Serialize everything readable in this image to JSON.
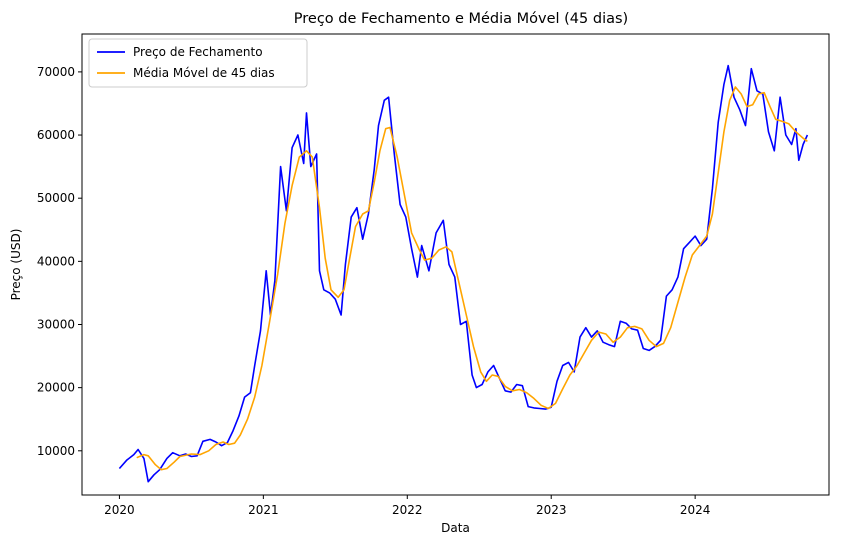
{
  "chart_data": {
    "type": "line",
    "title": "Preço de Fechamento e Média Móvel (45 dias)",
    "xlabel": "Data",
    "ylabel": "Preço (USD)",
    "xlim": [
      2019.74,
      2024.93
    ],
    "ylim": [
      3000,
      76000
    ],
    "x_ticks": [
      {
        "value": 2020,
        "label": "2020"
      },
      {
        "value": 2021,
        "label": "2021"
      },
      {
        "value": 2022,
        "label": "2022"
      },
      {
        "value": 2023,
        "label": "2023"
      },
      {
        "value": 2024,
        "label": "2024"
      }
    ],
    "y_ticks": [
      {
        "value": 10000,
        "label": "10000"
      },
      {
        "value": 20000,
        "label": "20000"
      },
      {
        "value": 30000,
        "label": "30000"
      },
      {
        "value": 40000,
        "label": "40000"
      },
      {
        "value": 50000,
        "label": "50000"
      },
      {
        "value": 60000,
        "label": "60000"
      },
      {
        "value": 70000,
        "label": "70000"
      }
    ],
    "grid": false,
    "legend_position": "top-left",
    "series": [
      {
        "name": "Preço de Fechamento",
        "color": "#0000ff",
        "points": [
          [
            2020.0,
            7200
          ],
          [
            2020.05,
            8500
          ],
          [
            2020.1,
            9400
          ],
          [
            2020.13,
            10200
          ],
          [
            2020.17,
            8800
          ],
          [
            2020.2,
            5100
          ],
          [
            2020.24,
            6200
          ],
          [
            2020.28,
            7000
          ],
          [
            2020.33,
            8800
          ],
          [
            2020.37,
            9700
          ],
          [
            2020.42,
            9200
          ],
          [
            2020.46,
            9500
          ],
          [
            2020.5,
            9100
          ],
          [
            2020.54,
            9200
          ],
          [
            2020.58,
            11500
          ],
          [
            2020.63,
            11800
          ],
          [
            2020.67,
            11400
          ],
          [
            2020.71,
            10800
          ],
          [
            2020.75,
            11300
          ],
          [
            2020.79,
            13200
          ],
          [
            2020.83,
            15500
          ],
          [
            2020.87,
            18500
          ],
          [
            2020.91,
            19200
          ],
          [
            2020.94,
            23500
          ],
          [
            2020.98,
            29000
          ],
          [
            2021.02,
            38500
          ],
          [
            2021.05,
            31500
          ],
          [
            2021.08,
            37000
          ],
          [
            2021.12,
            55000
          ],
          [
            2021.16,
            48000
          ],
          [
            2021.2,
            58000
          ],
          [
            2021.24,
            60000
          ],
          [
            2021.28,
            55500
          ],
          [
            2021.3,
            63500
          ],
          [
            2021.33,
            55000
          ],
          [
            2021.37,
            57000
          ],
          [
            2021.39,
            38500
          ],
          [
            2021.42,
            35500
          ],
          [
            2021.46,
            35000
          ],
          [
            2021.5,
            34000
          ],
          [
            2021.54,
            31500
          ],
          [
            2021.57,
            39500
          ],
          [
            2021.61,
            47000
          ],
          [
            2021.65,
            48500
          ],
          [
            2021.69,
            43500
          ],
          [
            2021.73,
            47500
          ],
          [
            2021.77,
            54500
          ],
          [
            2021.8,
            61500
          ],
          [
            2021.84,
            65500
          ],
          [
            2021.87,
            66000
          ],
          [
            2021.91,
            57000
          ],
          [
            2021.95,
            49000
          ],
          [
            2021.99,
            47000
          ],
          [
            2022.03,
            42000
          ],
          [
            2022.07,
            37500
          ],
          [
            2022.1,
            42500
          ],
          [
            2022.15,
            38500
          ],
          [
            2022.2,
            44500
          ],
          [
            2022.25,
            46500
          ],
          [
            2022.29,
            39500
          ],
          [
            2022.33,
            37500
          ],
          [
            2022.37,
            30000
          ],
          [
            2022.41,
            30500
          ],
          [
            2022.45,
            22000
          ],
          [
            2022.48,
            20000
          ],
          [
            2022.52,
            20500
          ],
          [
            2022.56,
            22500
          ],
          [
            2022.6,
            23500
          ],
          [
            2022.64,
            21500
          ],
          [
            2022.68,
            19500
          ],
          [
            2022.72,
            19300
          ],
          [
            2022.76,
            20500
          ],
          [
            2022.8,
            20300
          ],
          [
            2022.84,
            17000
          ],
          [
            2022.88,
            16800
          ],
          [
            2022.92,
            16700
          ],
          [
            2022.96,
            16600
          ],
          [
            2023.0,
            16900
          ],
          [
            2023.04,
            21000
          ],
          [
            2023.08,
            23500
          ],
          [
            2023.12,
            24000
          ],
          [
            2023.16,
            22500
          ],
          [
            2023.2,
            28000
          ],
          [
            2023.24,
            29500
          ],
          [
            2023.28,
            28000
          ],
          [
            2023.32,
            29000
          ],
          [
            2023.36,
            27200
          ],
          [
            2023.4,
            26800
          ],
          [
            2023.44,
            26500
          ],
          [
            2023.48,
            30500
          ],
          [
            2023.52,
            30200
          ],
          [
            2023.56,
            29300
          ],
          [
            2023.6,
            29100
          ],
          [
            2023.64,
            26200
          ],
          [
            2023.68,
            25900
          ],
          [
            2023.72,
            26500
          ],
          [
            2023.76,
            27500
          ],
          [
            2023.8,
            34500
          ],
          [
            2023.84,
            35500
          ],
          [
            2023.88,
            37500
          ],
          [
            2023.92,
            42000
          ],
          [
            2023.96,
            43000
          ],
          [
            2024.0,
            44000
          ],
          [
            2024.04,
            42500
          ],
          [
            2024.08,
            43500
          ],
          [
            2024.12,
            51500
          ],
          [
            2024.16,
            62000
          ],
          [
            2024.2,
            68000
          ],
          [
            2024.23,
            71000
          ],
          [
            2024.27,
            66000
          ],
          [
            2024.31,
            64000
          ],
          [
            2024.35,
            61500
          ],
          [
            2024.39,
            70500
          ],
          [
            2024.43,
            67000
          ],
          [
            2024.47,
            66500
          ],
          [
            2024.51,
            60500
          ],
          [
            2024.55,
            57500
          ],
          [
            2024.59,
            66000
          ],
          [
            2024.63,
            60000
          ],
          [
            2024.67,
            58500
          ],
          [
            2024.7,
            61000
          ],
          [
            2024.72,
            56000
          ],
          [
            2024.75,
            58500
          ],
          [
            2024.78,
            60000
          ]
        ]
      },
      {
        "name": "Média Móvel de 45 dias",
        "color": "#ffa500",
        "points": [
          [
            2020.12,
            8900
          ],
          [
            2020.17,
            9400
          ],
          [
            2020.2,
            9200
          ],
          [
            2020.25,
            7800
          ],
          [
            2020.29,
            7000
          ],
          [
            2020.33,
            7200
          ],
          [
            2020.38,
            8200
          ],
          [
            2020.42,
            9100
          ],
          [
            2020.5,
            9500
          ],
          [
            2020.56,
            9400
          ],
          [
            2020.62,
            10000
          ],
          [
            2020.67,
            11000
          ],
          [
            2020.72,
            11400
          ],
          [
            2020.76,
            11000
          ],
          [
            2020.8,
            11200
          ],
          [
            2020.84,
            12500
          ],
          [
            2020.89,
            15000
          ],
          [
            2020.94,
            18500
          ],
          [
            2020.99,
            23500
          ],
          [
            2021.04,
            30000
          ],
          [
            2021.1,
            38000
          ],
          [
            2021.15,
            46000
          ],
          [
            2021.2,
            52000
          ],
          [
            2021.25,
            56500
          ],
          [
            2021.3,
            57500
          ],
          [
            2021.34,
            56500
          ],
          [
            2021.39,
            48500
          ],
          [
            2021.43,
            40500
          ],
          [
            2021.47,
            35500
          ],
          [
            2021.52,
            34300
          ],
          [
            2021.56,
            35500
          ],
          [
            2021.6,
            40500
          ],
          [
            2021.64,
            45500
          ],
          [
            2021.69,
            47500
          ],
          [
            2021.73,
            48000
          ],
          [
            2021.77,
            52500
          ],
          [
            2021.81,
            57500
          ],
          [
            2021.85,
            61000
          ],
          [
            2021.88,
            61200
          ],
          [
            2021.93,
            56500
          ],
          [
            2021.98,
            50500
          ],
          [
            2022.03,
            44500
          ],
          [
            2022.08,
            42000
          ],
          [
            2022.12,
            40200
          ],
          [
            2022.17,
            40500
          ],
          [
            2022.22,
            41800
          ],
          [
            2022.27,
            42300
          ],
          [
            2022.31,
            41500
          ],
          [
            2022.36,
            36500
          ],
          [
            2022.41,
            31500
          ],
          [
            2022.46,
            26500
          ],
          [
            2022.51,
            22500
          ],
          [
            2022.55,
            21000
          ],
          [
            2022.59,
            22000
          ],
          [
            2022.63,
            21800
          ],
          [
            2022.68,
            20200
          ],
          [
            2022.73,
            19500
          ],
          [
            2022.78,
            19700
          ],
          [
            2022.83,
            19200
          ],
          [
            2022.88,
            18300
          ],
          [
            2022.93,
            17200
          ],
          [
            2022.98,
            16700
          ],
          [
            2023.03,
            17500
          ],
          [
            2023.08,
            19800
          ],
          [
            2023.13,
            22000
          ],
          [
            2023.18,
            23500
          ],
          [
            2023.23,
            25500
          ],
          [
            2023.28,
            27500
          ],
          [
            2023.33,
            28800
          ],
          [
            2023.38,
            28500
          ],
          [
            2023.43,
            27200
          ],
          [
            2023.48,
            28000
          ],
          [
            2023.53,
            29500
          ],
          [
            2023.58,
            29700
          ],
          [
            2023.63,
            29300
          ],
          [
            2023.68,
            27500
          ],
          [
            2023.73,
            26500
          ],
          [
            2023.78,
            27000
          ],
          [
            2023.83,
            29500
          ],
          [
            2023.88,
            33500
          ],
          [
            2023.93,
            37500
          ],
          [
            2023.98,
            41000
          ],
          [
            2024.03,
            42500
          ],
          [
            2024.08,
            44000
          ],
          [
            2024.12,
            47500
          ],
          [
            2024.16,
            54000
          ],
          [
            2024.2,
            60500
          ],
          [
            2024.24,
            65500
          ],
          [
            2024.28,
            67600
          ],
          [
            2024.32,
            66500
          ],
          [
            2024.36,
            64500
          ],
          [
            2024.4,
            64800
          ],
          [
            2024.44,
            66500
          ],
          [
            2024.48,
            66700
          ],
          [
            2024.52,
            64500
          ],
          [
            2024.56,
            62500
          ],
          [
            2024.6,
            62200
          ],
          [
            2024.65,
            61800
          ],
          [
            2024.7,
            60500
          ],
          [
            2024.75,
            59500
          ],
          [
            2024.78,
            59000
          ]
        ]
      }
    ]
  }
}
